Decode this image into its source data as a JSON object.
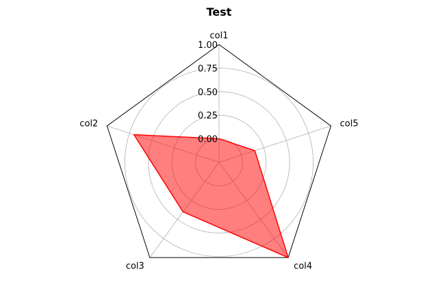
{
  "chart_data": {
    "type": "radar",
    "title": "Test",
    "categories": [
      "col1",
      "col2",
      "col3",
      "col4",
      "col5"
    ],
    "radial_ticks": [
      "0.00",
      "0.25",
      "0.50",
      "0.75",
      "1.00"
    ],
    "radial_tick_values": [
      0.0,
      0.25,
      0.5,
      0.75,
      1.0
    ],
    "rlim": [
      -0.25,
      1.0
    ],
    "grid": true,
    "series": [
      {
        "values": [
          0.0,
          0.7,
          0.4,
          1.0,
          0.15
        ],
        "color": "#ff0000",
        "fill": "#ff0000",
        "fill_opacity": 0.5
      }
    ]
  }
}
